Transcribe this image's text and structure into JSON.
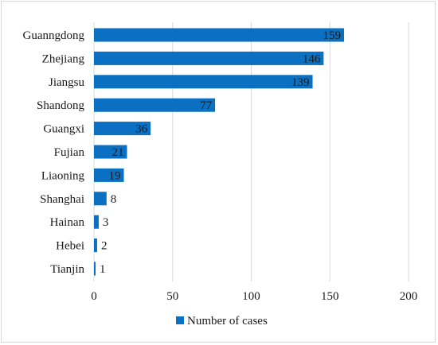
{
  "chart_data": {
    "type": "bar",
    "orientation": "horizontal",
    "categories": [
      "Guanngdong",
      "Zhejiang",
      "Jiangsu",
      "Shandong",
      "Guangxi",
      "Fujian",
      "Liaoning",
      "Shanghai",
      "Hainan",
      "Hebei",
      "Tianjin"
    ],
    "series": [
      {
        "name": "Number of cases",
        "values": [
          159,
          146,
          139,
          77,
          36,
          21,
          19,
          8,
          3,
          2,
          1
        ],
        "color": "#0b6fc2"
      }
    ],
    "xlim": [
      0,
      200
    ],
    "xticks": [
      0,
      50,
      100,
      150,
      200
    ],
    "grid": true,
    "legend": "bottom"
  }
}
